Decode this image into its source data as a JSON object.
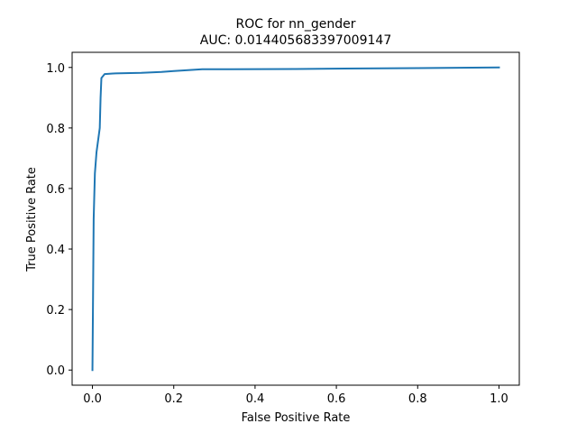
{
  "chart_data": {
    "type": "line",
    "title": "ROC for nn_gender",
    "subtitle": "AUC: 0.014405683397009147",
    "xlabel": "False Positive Rate",
    "ylabel": "True Positive Rate",
    "xlim": [
      -0.05,
      1.05
    ],
    "ylim": [
      -0.05,
      1.05
    ],
    "xticks": [
      0.0,
      0.2,
      0.4,
      0.6,
      0.8,
      1.0
    ],
    "xtick_labels": [
      "0.0",
      "0.2",
      "0.4",
      "0.6",
      "0.8",
      "1.0"
    ],
    "yticks": [
      0.0,
      0.2,
      0.4,
      0.6,
      0.8,
      1.0
    ],
    "ytick_labels": [
      "0.0",
      "0.2",
      "0.4",
      "0.6",
      "0.8",
      "1.0"
    ],
    "grid": false,
    "series": [
      {
        "color": "#1f77b4",
        "x": [
          0.0,
          0.003,
          0.006,
          0.01,
          0.015,
          0.018,
          0.02,
          0.022,
          0.03,
          0.05,
          0.08,
          0.12,
          0.17,
          0.2,
          0.27,
          0.5,
          0.8,
          1.0
        ],
        "y": [
          0.0,
          0.5,
          0.65,
          0.72,
          0.77,
          0.8,
          0.9,
          0.965,
          0.978,
          0.98,
          0.981,
          0.982,
          0.985,
          0.988,
          0.994,
          0.995,
          0.998,
          1.0
        ]
      }
    ]
  }
}
